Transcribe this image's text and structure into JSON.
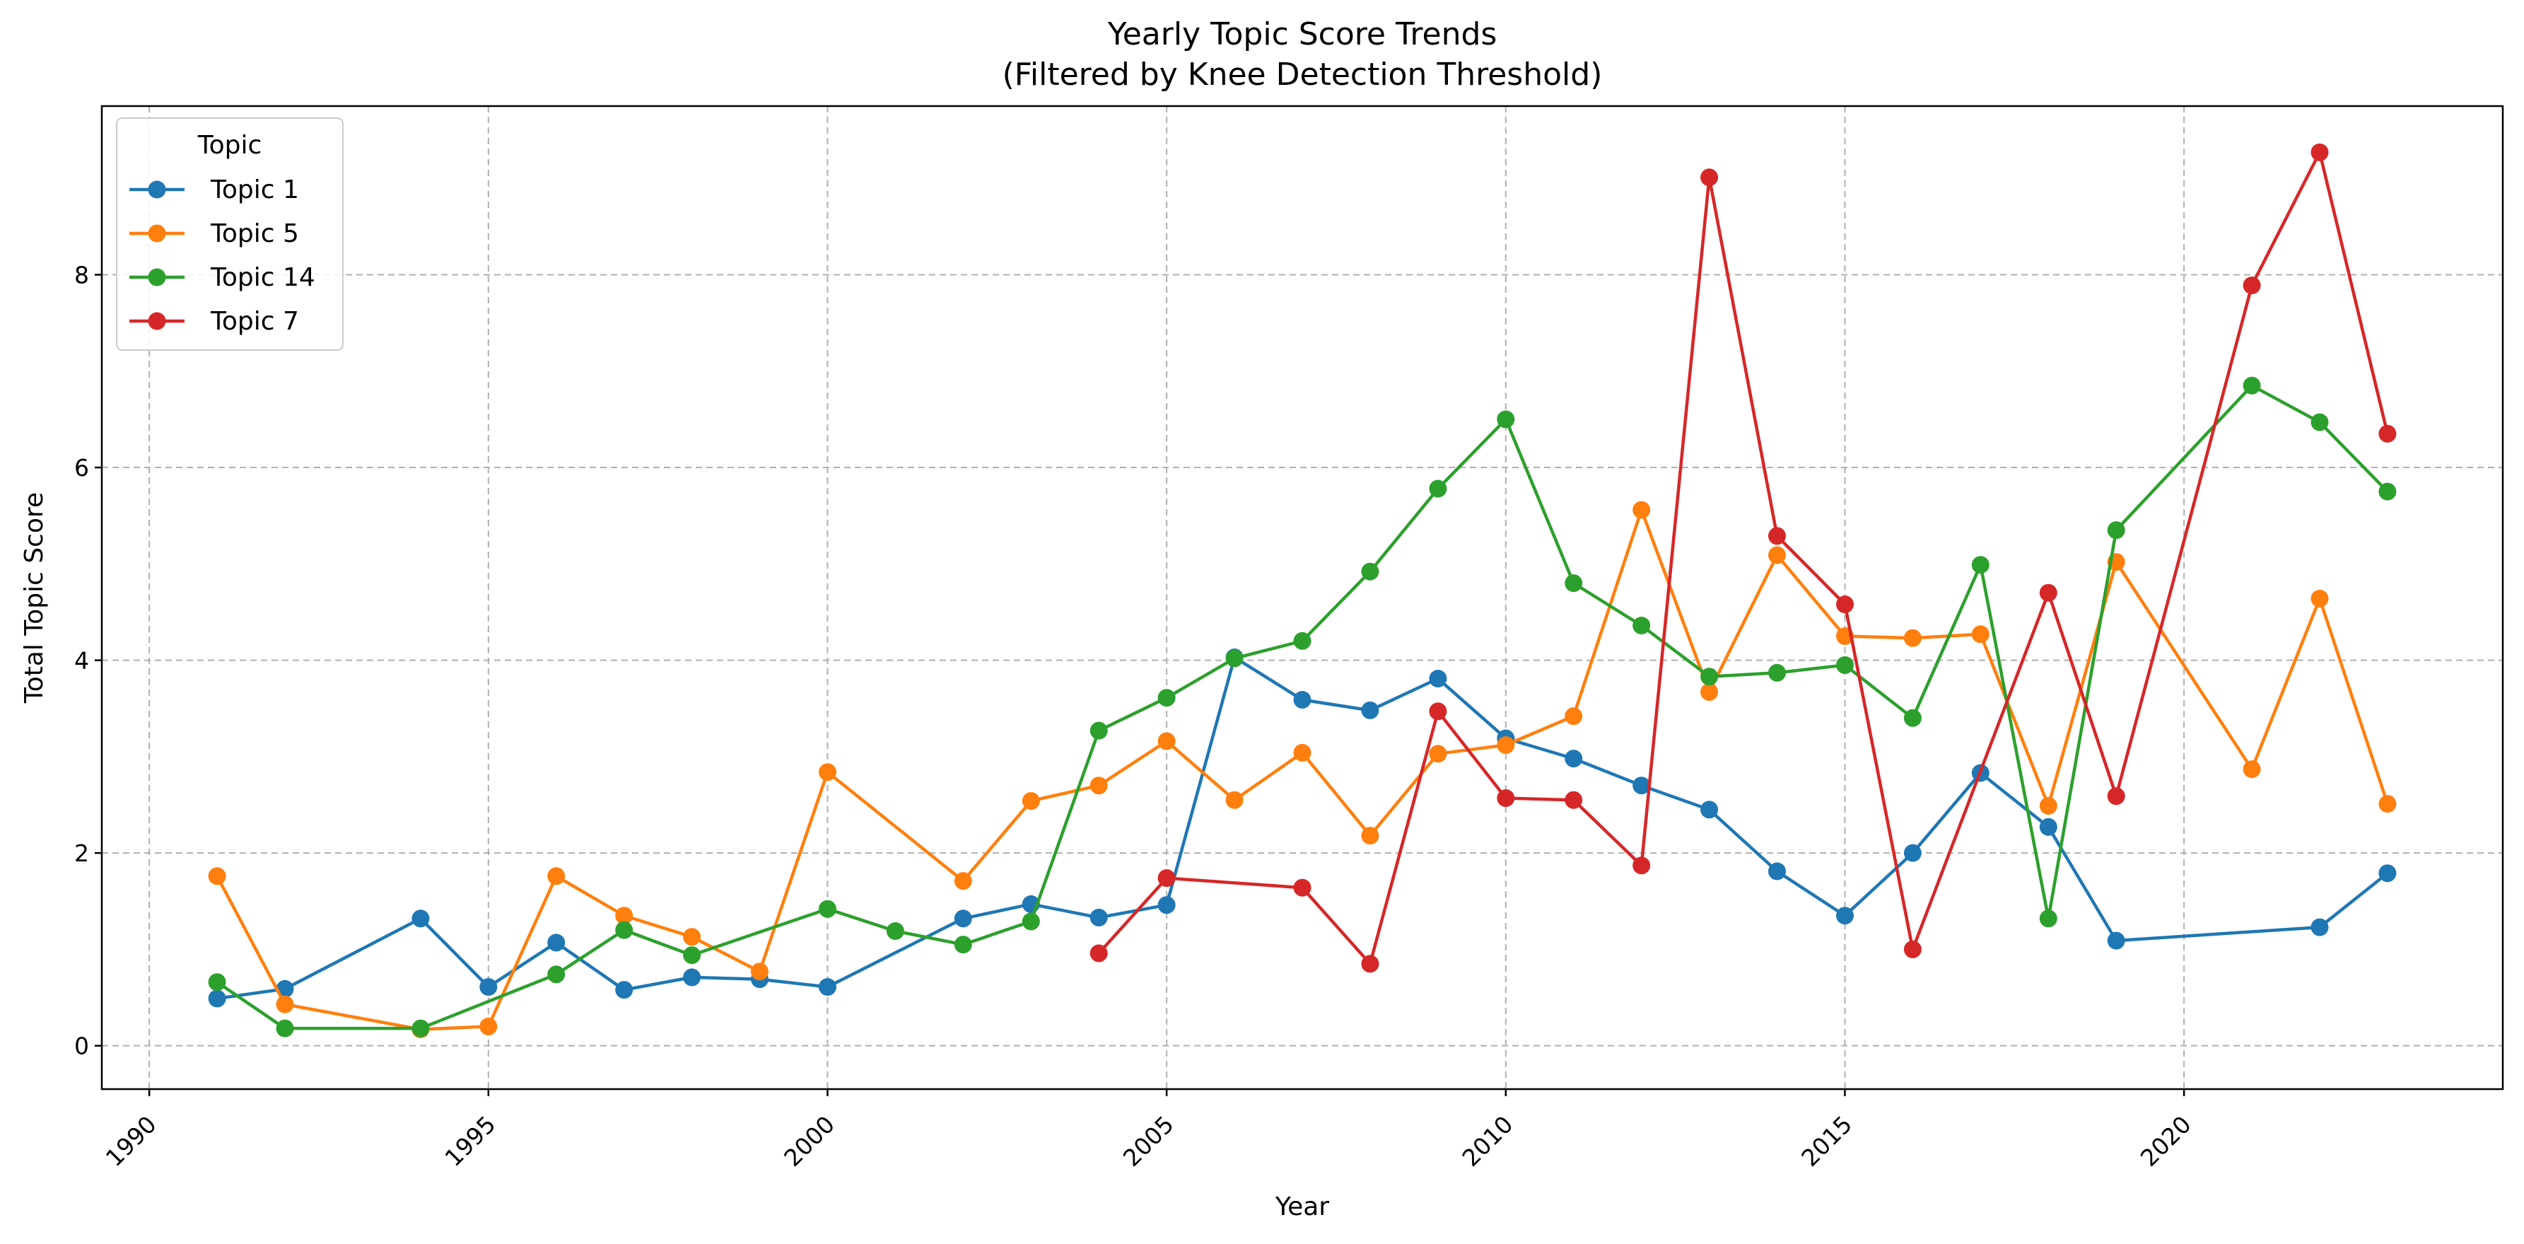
{
  "chart_data": {
    "type": "line",
    "title": "Yearly Topic Score Trends",
    "subtitle": "(Filtered by Knee Detection Threshold)",
    "xlabel": "Year",
    "ylabel": "Total Topic Score",
    "xlim": [
      1989.3,
      2024.7
    ],
    "ylim": [
      -0.45,
      9.75
    ],
    "xticks": [
      1990,
      1995,
      2000,
      2005,
      2010,
      2015,
      2020
    ],
    "yticks": [
      0,
      2,
      4,
      6,
      8
    ],
    "grid": true,
    "legend": {
      "title": "Topic",
      "placement": "top-left"
    },
    "series": [
      {
        "name": "Topic 1",
        "color": "#1f77b4",
        "points": [
          [
            1991,
            0.49
          ],
          [
            1992,
            0.59
          ],
          [
            1994,
            1.32
          ],
          [
            1995,
            0.61
          ],
          [
            1996,
            1.07
          ],
          [
            1997,
            0.58
          ],
          [
            1998,
            0.71
          ],
          [
            1999,
            0.69
          ],
          [
            2000,
            0.61
          ],
          [
            2002,
            1.32
          ],
          [
            2003,
            1.47
          ],
          [
            2004,
            1.33
          ],
          [
            2005,
            1.46
          ],
          [
            2006,
            4.03
          ],
          [
            2007,
            3.59
          ],
          [
            2008,
            3.48
          ],
          [
            2009,
            3.81
          ],
          [
            2010,
            3.19
          ],
          [
            2011,
            2.98
          ],
          [
            2012,
            2.7
          ],
          [
            2013,
            2.45
          ],
          [
            2014,
            1.81
          ],
          [
            2015,
            1.35
          ],
          [
            2016,
            2.0
          ],
          [
            2017,
            2.83
          ],
          [
            2018,
            2.27
          ],
          [
            2019,
            1.09
          ],
          [
            2022,
            1.23
          ],
          [
            2023,
            1.79
          ]
        ]
      },
      {
        "name": "Topic 5",
        "color": "#ff7f0e",
        "points": [
          [
            1991,
            1.76
          ],
          [
            1992,
            0.43
          ],
          [
            1994,
            0.17
          ],
          [
            1995,
            0.2
          ],
          [
            1996,
            1.76
          ],
          [
            1997,
            1.35
          ],
          [
            1998,
            1.13
          ],
          [
            1999,
            0.77
          ],
          [
            2000,
            2.84
          ],
          [
            2002,
            1.71
          ],
          [
            2003,
            2.54
          ],
          [
            2004,
            2.7
          ],
          [
            2005,
            3.16
          ],
          [
            2006,
            2.55
          ],
          [
            2007,
            3.04
          ],
          [
            2008,
            2.18
          ],
          [
            2009,
            3.03
          ],
          [
            2010,
            3.12
          ],
          [
            2011,
            3.42
          ],
          [
            2012,
            5.56
          ],
          [
            2013,
            3.67
          ],
          [
            2014,
            5.09
          ],
          [
            2015,
            4.25
          ],
          [
            2016,
            4.23
          ],
          [
            2017,
            4.27
          ],
          [
            2018,
            2.49
          ],
          [
            2019,
            5.02
          ],
          [
            2021,
            2.87
          ],
          [
            2022,
            4.64
          ],
          [
            2023,
            2.51
          ]
        ]
      },
      {
        "name": "Topic 14",
        "color": "#2ca02c",
        "points": [
          [
            1991,
            0.66
          ],
          [
            1992,
            0.18
          ],
          [
            1994,
            0.18
          ],
          [
            1996,
            0.74
          ],
          [
            1997,
            1.2
          ],
          [
            1998,
            0.94
          ],
          [
            2000,
            1.42
          ],
          [
            2001,
            1.19
          ],
          [
            2002,
            1.05
          ],
          [
            2003,
            1.29
          ],
          [
            2004,
            3.27
          ],
          [
            2005,
            3.61
          ],
          [
            2006,
            4.02
          ],
          [
            2007,
            4.2
          ],
          [
            2008,
            4.92
          ],
          [
            2009,
            5.78
          ],
          [
            2010,
            6.5
          ],
          [
            2011,
            4.8
          ],
          [
            2012,
            4.36
          ],
          [
            2013,
            3.83
          ],
          [
            2014,
            3.87
          ],
          [
            2015,
            3.95
          ],
          [
            2016,
            3.4
          ],
          [
            2017,
            4.99
          ],
          [
            2018,
            1.32
          ],
          [
            2019,
            5.35
          ],
          [
            2021,
            6.85
          ],
          [
            2022,
            6.47
          ],
          [
            2023,
            5.75
          ]
        ]
      },
      {
        "name": "Topic 7",
        "color": "#d62728",
        "points": [
          [
            2004,
            0.96
          ],
          [
            2005,
            1.74
          ],
          [
            2007,
            1.64
          ],
          [
            2008,
            0.85
          ],
          [
            2009,
            3.47
          ],
          [
            2010,
            2.57
          ],
          [
            2011,
            2.55
          ],
          [
            2012,
            1.87
          ],
          [
            2013,
            9.01
          ],
          [
            2014,
            5.29
          ],
          [
            2015,
            4.58
          ],
          [
            2016,
            1.0
          ],
          [
            2018,
            4.7
          ],
          [
            2019,
            2.59
          ],
          [
            2021,
            7.89
          ],
          [
            2022,
            9.27
          ],
          [
            2023,
            6.35
          ]
        ]
      }
    ]
  }
}
